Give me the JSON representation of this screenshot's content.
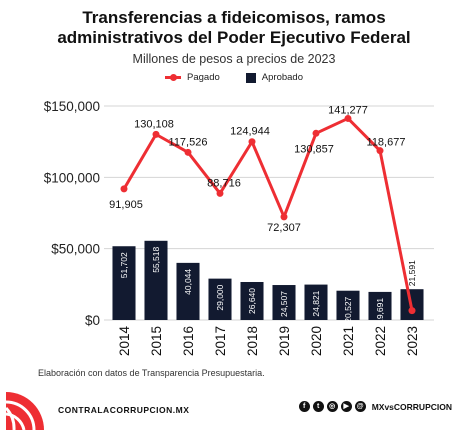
{
  "header": {
    "title_line1": "Transferencias a fideicomisos, ramos",
    "title_line2": "administrativos del Poder Ejecutivo Federal",
    "subtitle": "Millones de pesos a precios de 2023"
  },
  "chart_data": {
    "type": "bar",
    "categories": [
      "2014",
      "2015",
      "2016",
      "2017",
      "2018",
      "2019",
      "2020",
      "2021",
      "2022",
      "2023"
    ],
    "series": [
      {
        "name": "Pagado",
        "type": "line",
        "color": "#ee2e33",
        "values": [
          91905,
          130108,
          117526,
          88716,
          124944,
          72307,
          130857,
          141277,
          118677,
          6589
        ],
        "labels": [
          "91,905",
          "130,108",
          "117,526",
          "88,716",
          "124,944",
          "72,307",
          "130,857",
          "141,277",
          "118,677",
          ""
        ]
      },
      {
        "name": "Aprobado",
        "type": "bar",
        "color": "#121a30",
        "values": [
          51702,
          55518,
          40044,
          29000,
          26640,
          24507,
          24821,
          20527,
          19691,
          21591
        ],
        "labels": [
          "51,702",
          "55,518",
          "40,044",
          "29,000",
          "26,640",
          "24,507",
          "24,821",
          "20,527",
          "19,691",
          "21,591"
        ]
      }
    ],
    "yticks": [
      "$0",
      "$50,000",
      "$100,000",
      "$150,000"
    ],
    "ytick_values": [
      0,
      50000,
      100000,
      150000
    ],
    "ylim": [
      0,
      150000
    ],
    "grid": true,
    "legend_position": "top-center"
  },
  "footer": {
    "source": "Elaboración con datos de Transparencia Presupuestaria.",
    "site": "CONTRALACORRUPCION.MX",
    "handle": "MXvsCORRUPCION",
    "social_icons": [
      "facebook-icon",
      "twitter-icon",
      "instagram-icon",
      "youtube-icon",
      "at-icon"
    ],
    "brand_color": "#ee2e33"
  }
}
